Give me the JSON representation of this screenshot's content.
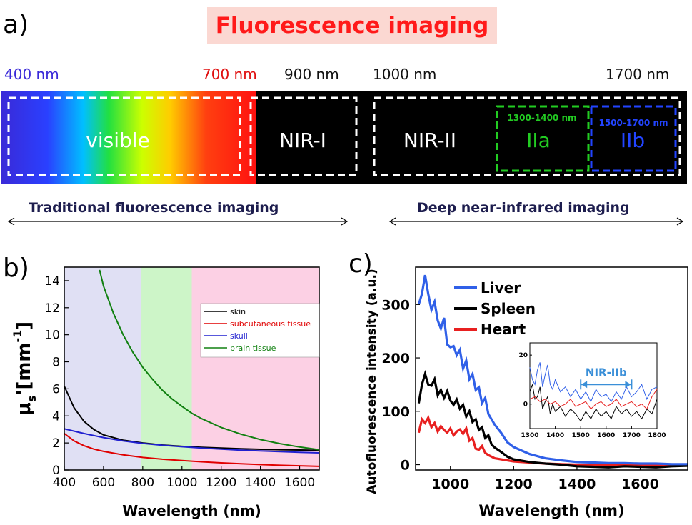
{
  "panel_a": {
    "label": "a)",
    "title": "Fluorescence imaging",
    "nm_labels": [
      "400 nm",
      "700 nm",
      "900 nm",
      "1000 nm",
      "1700 nm"
    ],
    "nm_colors": [
      "#3a2ad8",
      "#e01010",
      "#111111",
      "#111111",
      "#111111"
    ],
    "bands": {
      "visible": "visible",
      "nir1": "NIR-I",
      "nir2": "NIR-II",
      "iia": "IIa",
      "iib": "IIb"
    },
    "subranges": {
      "iia": "1300-1400 nm",
      "iib": "1500-1700 nm"
    },
    "arrows": {
      "left": "Traditional fluorescence imaging",
      "right": "Deep near-infrared imaging"
    },
    "colors": {
      "iia": "#22cc22",
      "iib": "#2244ff",
      "title": "#ff1a1a",
      "title_bg": "#fbd8d2"
    }
  },
  "chart_data": [
    {
      "type": "line",
      "panel": "b)",
      "xlabel": "Wavelength (nm)",
      "ylabel_main": "μ",
      "ylabel_sub": "s",
      "ylabel_rest": "'[mm",
      "ylabel_sup": "-1",
      "ylabel_end": "]",
      "xlim": [
        400,
        1700
      ],
      "ylim": [
        0,
        15
      ],
      "xticks": [
        400,
        600,
        800,
        1000,
        1200,
        1400,
        1600
      ],
      "yticks": [
        0,
        2,
        4,
        6,
        8,
        10,
        12,
        14
      ],
      "regions": [
        {
          "from": 400,
          "to": 790,
          "color": "#e0e0f4"
        },
        {
          "from": 790,
          "to": 1050,
          "color": "#cdf5c8"
        },
        {
          "from": 1050,
          "to": 1700,
          "color": "#fcd0e4"
        }
      ],
      "legend_position": "top-right",
      "series": [
        {
          "name": "skin",
          "color": "#000000",
          "x": [
            400,
            450,
            500,
            550,
            600,
            700,
            800,
            900,
            1000,
            1100,
            1200,
            1300,
            1400,
            1500,
            1600,
            1700
          ],
          "y": [
            6.2,
            4.6,
            3.6,
            3.0,
            2.6,
            2.2,
            2.0,
            1.85,
            1.75,
            1.68,
            1.62,
            1.57,
            1.53,
            1.5,
            1.48,
            1.45
          ]
        },
        {
          "name": "subcutaneous tissue",
          "color": "#e00000",
          "x": [
            400,
            450,
            500,
            550,
            600,
            700,
            800,
            900,
            1000,
            1100,
            1200,
            1300,
            1400,
            1500,
            1600,
            1700
          ],
          "y": [
            2.7,
            2.15,
            1.8,
            1.55,
            1.38,
            1.12,
            0.93,
            0.8,
            0.7,
            0.61,
            0.53,
            0.46,
            0.4,
            0.35,
            0.31,
            0.27
          ]
        },
        {
          "name": "skull",
          "color": "#2020d0",
          "x": [
            400,
            500,
            600,
            700,
            800,
            900,
            1000,
            1100,
            1200,
            1300,
            1400,
            1500,
            1600,
            1700
          ],
          "y": [
            3.05,
            2.7,
            2.4,
            2.15,
            1.97,
            1.83,
            1.72,
            1.62,
            1.54,
            1.47,
            1.41,
            1.36,
            1.31,
            1.27
          ]
        },
        {
          "name": "brain tissue",
          "color": "#108010",
          "x": [
            580,
            600,
            650,
            700,
            750,
            800,
            850,
            900,
            950,
            1000,
            1050,
            1100,
            1200,
            1300,
            1400,
            1500,
            1600,
            1700
          ],
          "y": [
            14.8,
            13.6,
            11.6,
            10.0,
            8.7,
            7.6,
            6.7,
            5.9,
            5.25,
            4.7,
            4.2,
            3.8,
            3.15,
            2.65,
            2.25,
            1.95,
            1.7,
            1.5
          ]
        }
      ]
    },
    {
      "type": "line",
      "panel": "c)",
      "xlabel": "Wavelength (nm)",
      "ylabel": "Autofluorescence intensity (a.u.)",
      "xlim": [
        890,
        1750
      ],
      "ylim": [
        -10,
        370
      ],
      "xticks": [
        1000,
        1200,
        1400,
        1600
      ],
      "yticks": [
        0,
        100,
        200,
        300
      ],
      "legend_position": "top-left",
      "series": [
        {
          "name": "Liver",
          "color": "#3060e8",
          "x": [
            900,
            910,
            920,
            930,
            940,
            950,
            960,
            970,
            980,
            990,
            1000,
            1010,
            1020,
            1030,
            1040,
            1050,
            1060,
            1070,
            1080,
            1090,
            1100,
            1110,
            1120,
            1130,
            1140,
            1160,
            1180,
            1200,
            1250,
            1300,
            1350,
            1400,
            1450,
            1500,
            1550,
            1600,
            1650,
            1700,
            1750
          ],
          "y": [
            300,
            320,
            355,
            320,
            290,
            305,
            270,
            255,
            275,
            225,
            220,
            222,
            205,
            215,
            180,
            195,
            160,
            170,
            140,
            145,
            115,
            125,
            95,
            85,
            75,
            60,
            42,
            33,
            20,
            12,
            8,
            5,
            4,
            3,
            3,
            2,
            2,
            1,
            1
          ]
        },
        {
          "name": "Spleen",
          "color": "#000000",
          "x": [
            900,
            910,
            920,
            930,
            940,
            950,
            960,
            970,
            980,
            990,
            1000,
            1010,
            1020,
            1030,
            1040,
            1050,
            1060,
            1070,
            1080,
            1090,
            1100,
            1110,
            1120,
            1130,
            1140,
            1160,
            1180,
            1200,
            1250,
            1300,
            1350,
            1400,
            1450,
            1500,
            1550,
            1600,
            1650,
            1700,
            1750
          ],
          "y": [
            115,
            150,
            170,
            150,
            148,
            160,
            130,
            140,
            125,
            138,
            120,
            112,
            122,
            105,
            112,
            90,
            100,
            80,
            85,
            65,
            70,
            50,
            55,
            38,
            32,
            24,
            15,
            10,
            5,
            2,
            0,
            -3,
            -4,
            -5,
            -3,
            -4,
            -5,
            -3,
            -2
          ]
        },
        {
          "name": "Heart",
          "color": "#e82020",
          "x": [
            900,
            910,
            920,
            930,
            940,
            950,
            960,
            970,
            980,
            990,
            1000,
            1010,
            1020,
            1030,
            1040,
            1050,
            1060,
            1070,
            1080,
            1090,
            1100,
            1110,
            1120,
            1130,
            1140,
            1160,
            1180,
            1200,
            1250,
            1300,
            1350,
            1400,
            1450,
            1500,
            1550,
            1600,
            1650,
            1700,
            1750
          ],
          "y": [
            60,
            85,
            78,
            88,
            70,
            78,
            62,
            72,
            65,
            60,
            68,
            55,
            62,
            66,
            58,
            68,
            45,
            50,
            30,
            28,
            35,
            22,
            18,
            15,
            12,
            10,
            8,
            6,
            4,
            2,
            1,
            0,
            0,
            0,
            0,
            0,
            0,
            0,
            0
          ]
        }
      ],
      "inset": {
        "xlim": [
          1300,
          1800
        ],
        "ylim": [
          -10,
          25
        ],
        "xticks": [
          1300,
          1400,
          1500,
          1600,
          1700,
          1800
        ],
        "yticks": [
          0,
          20
        ],
        "annotation": "NIR-IIb",
        "annotation_range": [
          1500,
          1700
        ],
        "annotation_color": "#3a8fd8",
        "series": [
          {
            "name": "Liver",
            "color": "#3060e8",
            "x": [
              1300,
              1310,
              1320,
              1330,
              1340,
              1350,
              1360,
              1370,
              1380,
              1390,
              1400,
              1420,
              1440,
              1460,
              1480,
              1500,
              1520,
              1540,
              1560,
              1580,
              1600,
              1620,
              1640,
              1660,
              1680,
              1700,
              1720,
              1740,
              1760,
              1780,
              1800
            ],
            "y": [
              15,
              10,
              8,
              14,
              17,
              7,
              12,
              16,
              8,
              6,
              10,
              5,
              7,
              3,
              6,
              2,
              5,
              1,
              6,
              3,
              4,
              1,
              5,
              2,
              7,
              3,
              5,
              8,
              2,
              6,
              7
            ]
          },
          {
            "name": "Spleen",
            "color": "#000000",
            "x": [
              1300,
              1310,
              1320,
              1330,
              1340,
              1350,
              1360,
              1370,
              1380,
              1390,
              1400,
              1420,
              1440,
              1460,
              1480,
              1500,
              1520,
              1540,
              1560,
              1580,
              1600,
              1620,
              1640,
              1660,
              1680,
              1700,
              1720,
              1740,
              1760,
              1780,
              1800
            ],
            "y": [
              5,
              8,
              2,
              3,
              7,
              -2,
              1,
              3,
              -4,
              0,
              -3,
              -1,
              -5,
              -2,
              -4,
              -7,
              -3,
              -6,
              -2,
              -5,
              -3,
              -6,
              -1,
              -4,
              -2,
              -5,
              -3,
              -6,
              -2,
              -4,
              2
            ]
          },
          {
            "name": "Heart",
            "color": "#e82020",
            "x": [
              1300,
              1320,
              1340,
              1360,
              1380,
              1400,
              1420,
              1440,
              1460,
              1480,
              1500,
              1520,
              1540,
              1560,
              1580,
              1600,
              1620,
              1640,
              1660,
              1680,
              1700,
              1720,
              1740,
              1760,
              1780,
              1800
            ],
            "y": [
              2,
              3,
              1,
              2,
              0,
              1,
              -1,
              0,
              2,
              -1,
              0,
              1,
              -2,
              0,
              1,
              -1,
              0,
              2,
              -1,
              0,
              1,
              -1,
              0,
              -2,
              3,
              6
            ]
          }
        ]
      }
    }
  ]
}
